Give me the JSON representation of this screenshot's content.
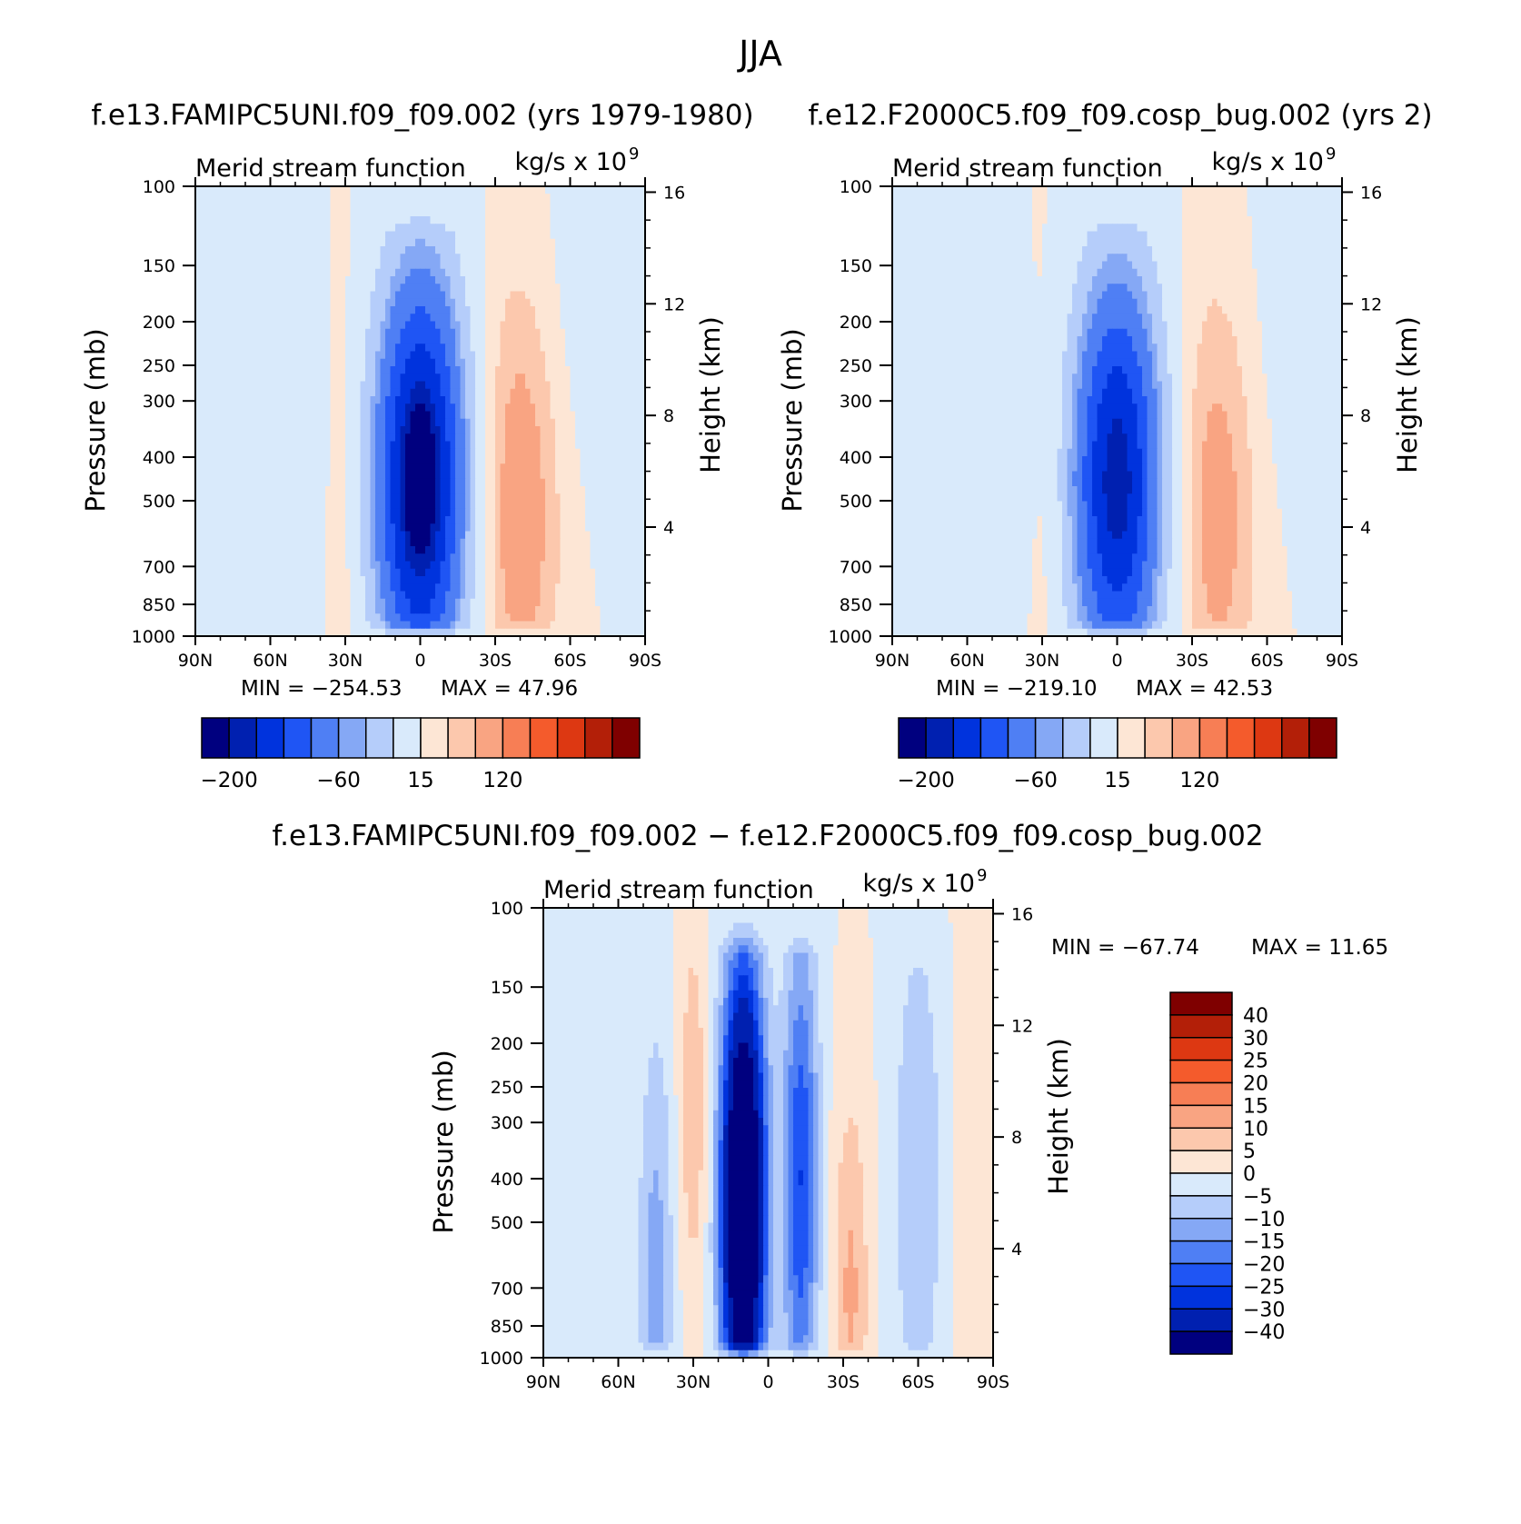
{
  "page_title": "JJA",
  "chart_data": [
    {
      "type": "heatmap",
      "title": "f.e13.FAMIPC5UNI.f09_f09.002 (yrs 1979-1980)",
      "subtitle_left": "Merid stream function",
      "subtitle_right": "kg/s x 10",
      "subtitle_exp": "9",
      "ylabel": "Pressure (mb)",
      "ylabel_right": "Height (km)",
      "x_ticks": [
        "90N",
        "60N",
        "30N",
        "0",
        "30S",
        "60S",
        "90S"
      ],
      "x_range": [
        90,
        -90
      ],
      "y_ticks": [
        100,
        150,
        200,
        250,
        300,
        400,
        500,
        700,
        850,
        1000
      ],
      "y_scale": "log",
      "y_range": [
        100,
        1000
      ],
      "y_right_ticks": [
        4,
        8,
        12,
        16
      ],
      "min_label": "MIN = −254.53",
      "max_label": "MAX = 47.96",
      "min": -254.53,
      "max": 47.96,
      "colorbar_orientation": "horizontal",
      "colorbar_labels": [
        "−200",
        "−60",
        "15",
        "120"
      ],
      "colorbar_colors": [
        "#00007f",
        "#0020b0",
        "#0033dd",
        "#1f55f4",
        "#4f7ff4",
        "#85a8f5",
        "#b5cdfa",
        "#d9eafb",
        "#fde6d5",
        "#fcc8ad",
        "#f9a482",
        "#f77e55",
        "#f45b2c",
        "#dd3812",
        "#b31f08",
        "#7f0000"
      ],
      "features": [
        {
          "lat": 0,
          "p": 450,
          "value": -254,
          "sx": 12,
          "sy": 1.45
        },
        {
          "lat": -40,
          "p": 500,
          "value": 47,
          "sx": 11,
          "sy": 1.6
        },
        {
          "lat": -60,
          "p": 200,
          "value": -8,
          "sx": 18,
          "sy": 1.4
        },
        {
          "lat": 55,
          "p": 300,
          "value": -11,
          "sx": 7,
          "sy": 2.4
        },
        {
          "lat": 30,
          "p": 550,
          "value": 12,
          "sx": 4,
          "sy": 1.8
        }
      ]
    },
    {
      "type": "heatmap",
      "title": "f.e12.F2000C5.f09_f09.cosp_bug.002 (yrs 2)",
      "subtitle_left": "Merid stream function",
      "subtitle_right": "kg/s x 10",
      "subtitle_exp": "9",
      "ylabel": "Pressure (mb)",
      "ylabel_right": "Height (km)",
      "x_ticks": [
        "90N",
        "60N",
        "30N",
        "0",
        "30S",
        "60S",
        "90S"
      ],
      "x_range": [
        90,
        -90
      ],
      "y_ticks": [
        100,
        150,
        200,
        250,
        300,
        400,
        500,
        700,
        850,
        1000
      ],
      "y_scale": "log",
      "y_range": [
        100,
        1000
      ],
      "y_right_ticks": [
        4,
        8,
        12,
        16
      ],
      "min_label": "MIN = −219.10",
      "max_label": "MAX = 42.53",
      "min": -219.1,
      "max": 42.53,
      "colorbar_orientation": "horizontal",
      "colorbar_labels": [
        "−200",
        "−60",
        "15",
        "120"
      ],
      "colorbar_colors": [
        "#00007f",
        "#0020b0",
        "#0033dd",
        "#1f55f4",
        "#4f7ff4",
        "#85a8f5",
        "#b5cdfa",
        "#d9eafb",
        "#fde6d5",
        "#fcc8ad",
        "#f9a482",
        "#f77e55",
        "#f45b2c",
        "#dd3812",
        "#b31f08",
        "#7f0000"
      ],
      "features": [
        {
          "lat": 0,
          "p": 450,
          "value": -219,
          "sx": 12,
          "sy": 1.45
        },
        {
          "lat": -40,
          "p": 500,
          "value": 42,
          "sx": 11,
          "sy": 1.6
        },
        {
          "lat": -60,
          "p": 220,
          "value": -7,
          "sx": 20,
          "sy": 1.4
        },
        {
          "lat": 58,
          "p": 500,
          "value": -9,
          "sx": 6,
          "sy": 2.2
        },
        {
          "lat": 28,
          "p": 600,
          "value": 10,
          "sx": 4,
          "sy": 1.8
        }
      ]
    },
    {
      "type": "heatmap",
      "title": "f.e13.FAMIPC5UNI.f09_f09.002 − f.e12.F2000C5.f09_f09.cosp_bug.002",
      "subtitle_left": "Merid stream function",
      "subtitle_right": "kg/s x 10",
      "subtitle_exp": "9",
      "ylabel": "Pressure (mb)",
      "ylabel_right": "Height (km)",
      "x_ticks": [
        "90N",
        "60N",
        "30N",
        "0",
        "30S",
        "60S",
        "90S"
      ],
      "x_range": [
        90,
        -90
      ],
      "y_ticks": [
        100,
        150,
        200,
        250,
        300,
        400,
        500,
        700,
        850,
        1000
      ],
      "y_scale": "log",
      "y_range": [
        100,
        1000
      ],
      "y_right_ticks": [
        4,
        8,
        12,
        16
      ],
      "min_label": "MIN = −67.74",
      "max_label": "MAX = 11.65",
      "min": -67.74,
      "max": 11.65,
      "colorbar_orientation": "vertical",
      "colorbar_labels": [
        "40",
        "30",
        "25",
        "20",
        "15",
        "10",
        "5",
        "0",
        "−5",
        "−10",
        "−15",
        "−20",
        "−25",
        "−30",
        "−40"
      ],
      "colorbar_colors": [
        "#7f0000",
        "#b31f08",
        "#dd3812",
        "#f45b2c",
        "#f77e55",
        "#f9a482",
        "#fcc8ad",
        "#fde6d5",
        "#d9eafb",
        "#b5cdfa",
        "#85a8f5",
        "#4f7ff4",
        "#1f55f4",
        "#0033dd",
        "#0020b0",
        "#00007f"
      ],
      "features": [
        {
          "lat": 10,
          "p": 450,
          "value": -67,
          "sx": 6,
          "sy": 1.6
        },
        {
          "lat": -13,
          "p": 400,
          "value": -25,
          "sx": 5,
          "sy": 1.7
        },
        {
          "lat": 45,
          "p": 650,
          "value": -12,
          "sx": 5,
          "sy": 1.7
        },
        {
          "lat": 30,
          "p": 280,
          "value": 9,
          "sx": 4,
          "sy": 1.4
        },
        {
          "lat": -33,
          "p": 700,
          "value": 11,
          "sx": 5,
          "sy": 1.4
        },
        {
          "lat": -60,
          "p": 400,
          "value": -10,
          "sx": 7,
          "sy": 1.8
        },
        {
          "lat": -80,
          "p": 400,
          "value": 2,
          "sx": 6,
          "sy": 3
        }
      ]
    }
  ]
}
